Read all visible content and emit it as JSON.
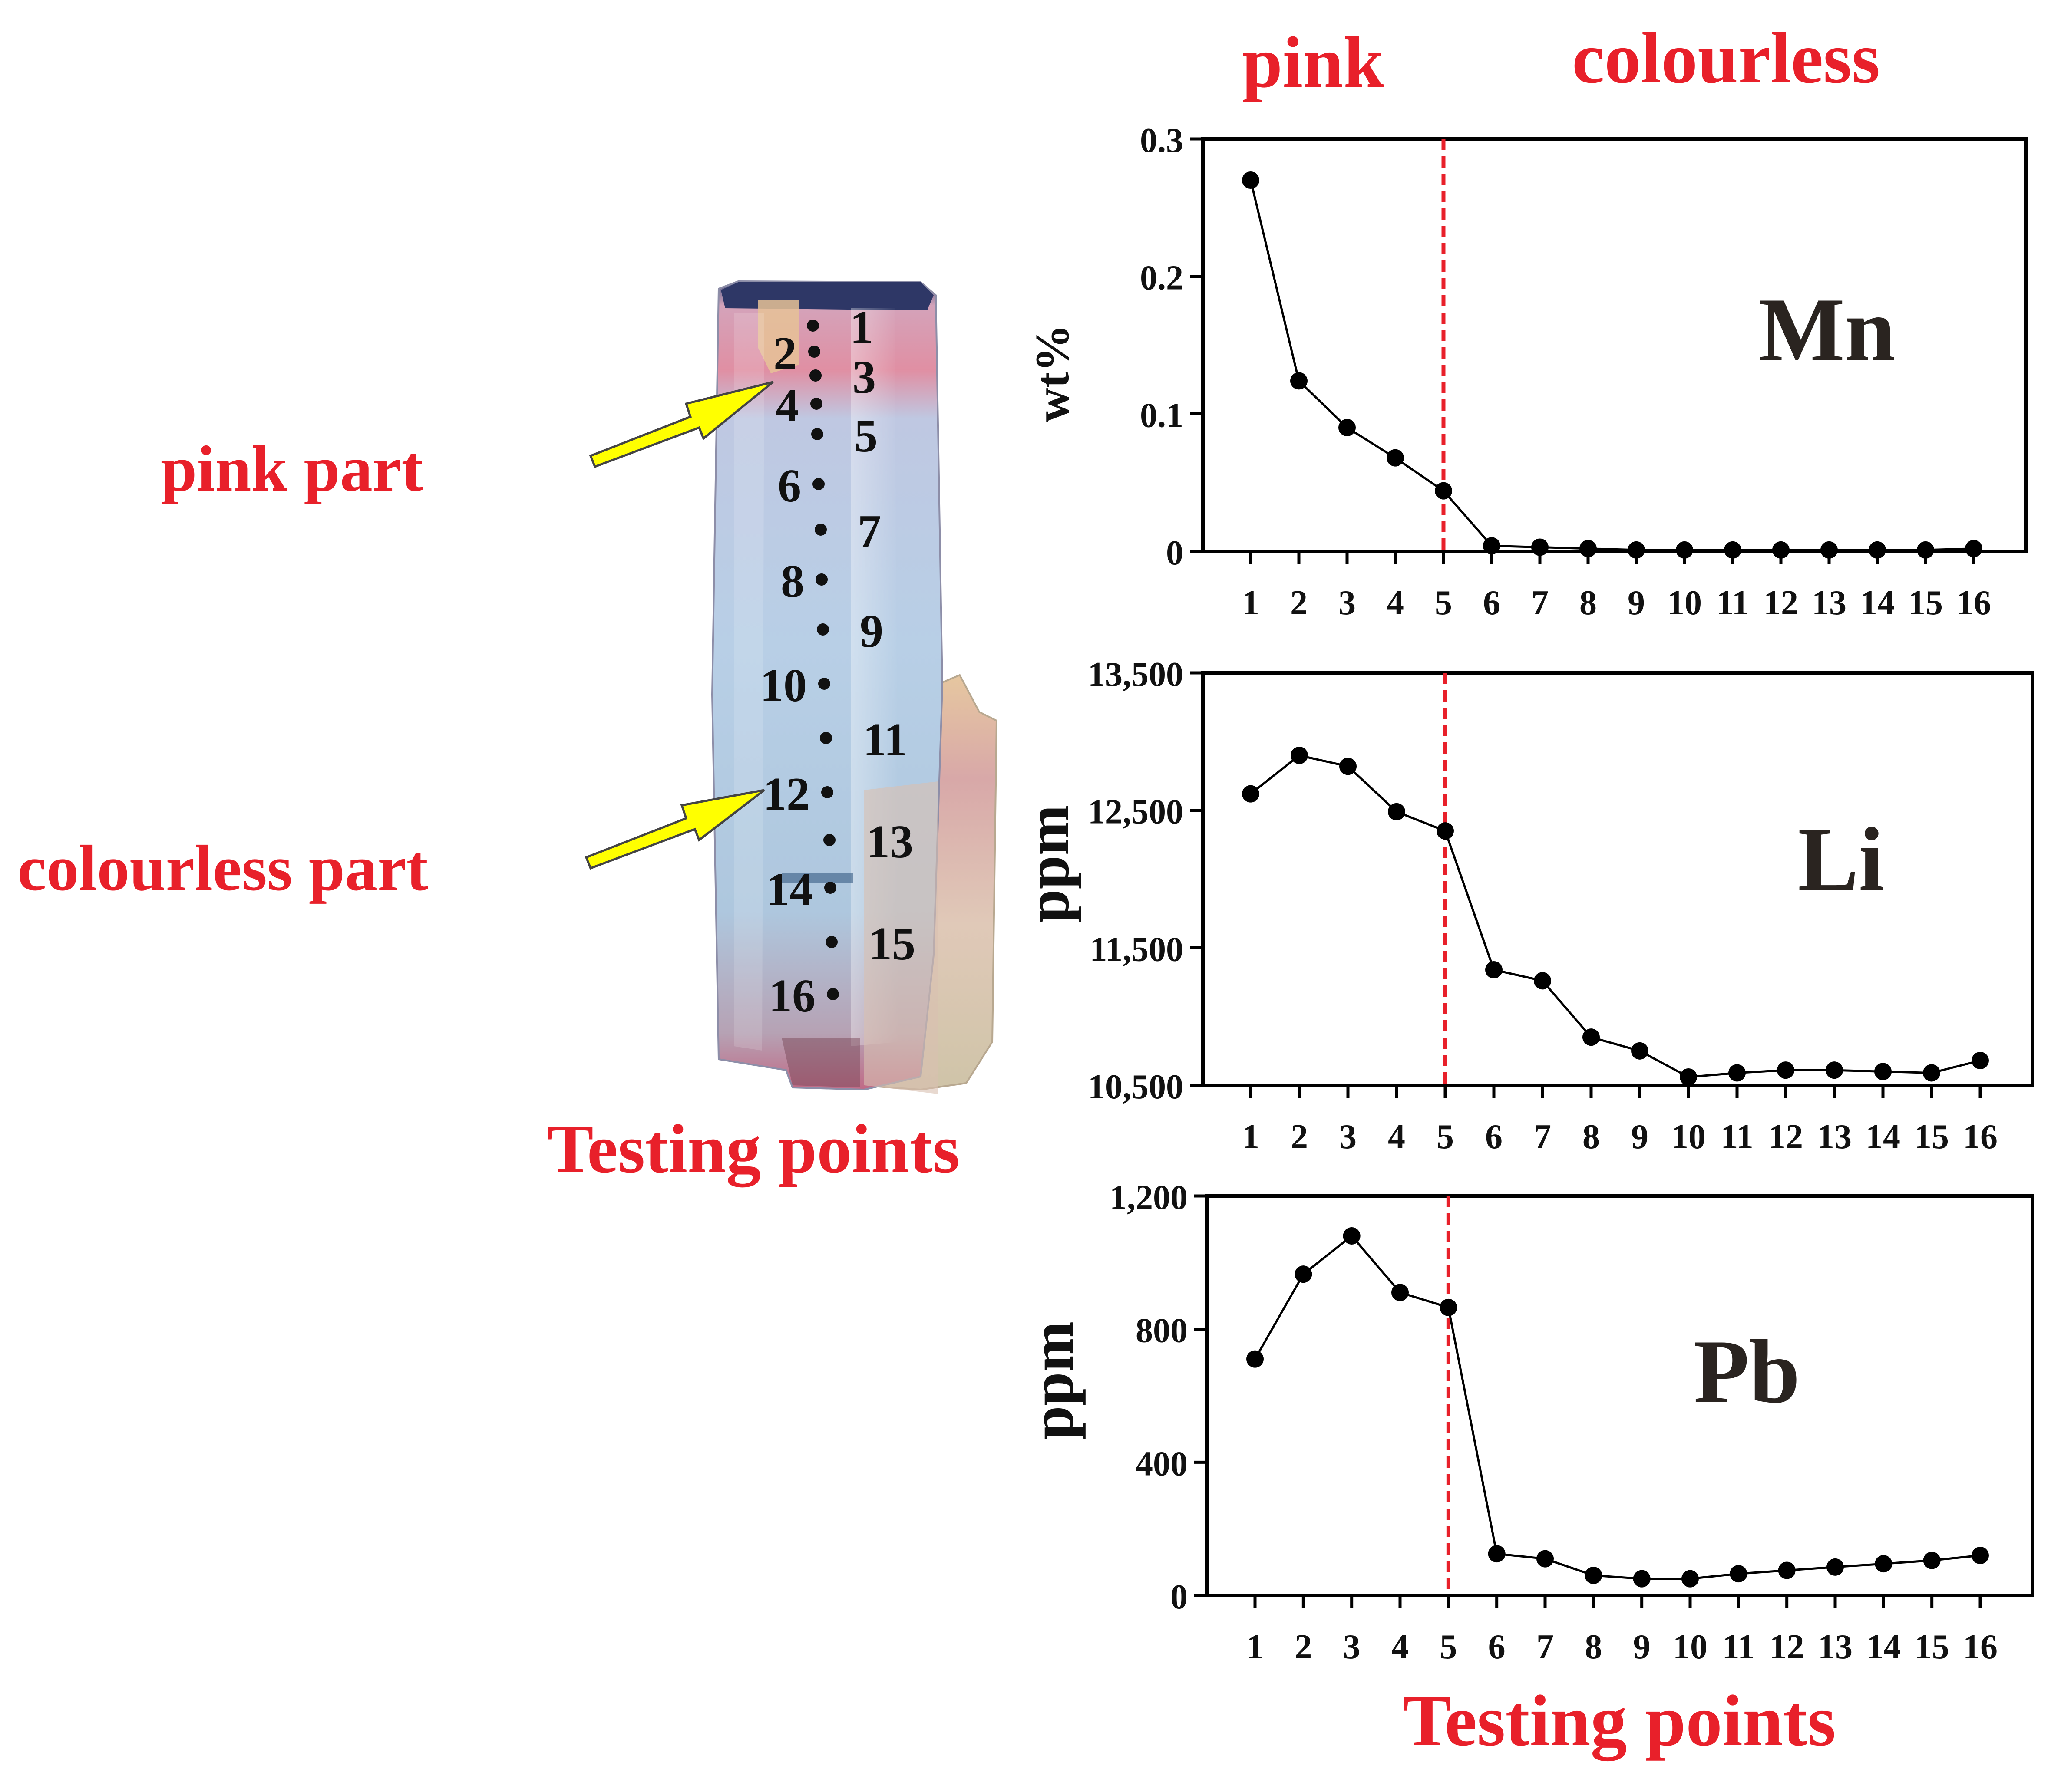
{
  "labels": {
    "pink_header": "pink",
    "colourless_header": "colourless",
    "pink_part": "pink part",
    "colourless_part": "colourless part",
    "photo_caption": "Testing points",
    "x_caption": "Testing points"
  },
  "photo_points": [
    "1",
    "2",
    "3",
    "4",
    "5",
    "6",
    "7",
    "8",
    "9",
    "10",
    "11",
    "12",
    "13",
    "14",
    "15",
    "16"
  ],
  "colors": {
    "accent_red": "#e8202a",
    "arrow_yellow": "#ffff00",
    "line": "#000000"
  },
  "chart_data": [
    {
      "type": "line",
      "element": "Mn",
      "ylabel": "wt%",
      "x": [
        1,
        2,
        3,
        4,
        5,
        6,
        7,
        8,
        9,
        10,
        11,
        12,
        13,
        14,
        15,
        16
      ],
      "values": [
        0.27,
        0.124,
        0.09,
        0.068,
        0.044,
        0.004,
        0.003,
        0.002,
        0.001,
        0.001,
        0.001,
        0.001,
        0.001,
        0.001,
        0.001,
        0.002
      ],
      "ylim": [
        0,
        0.3
      ],
      "yticks": [
        "0",
        "0.1",
        "0.2",
        "0.3"
      ],
      "divider_x": 5,
      "grid": false
    },
    {
      "type": "line",
      "element": "Li",
      "ylabel": "ppm",
      "x": [
        1,
        2,
        3,
        4,
        5,
        6,
        7,
        8,
        9,
        10,
        11,
        12,
        13,
        14,
        15,
        16
      ],
      "values": [
        12620,
        12900,
        12820,
        12490,
        12350,
        11340,
        11260,
        10850,
        10750,
        10560,
        10590,
        10610,
        10610,
        10600,
        10590,
        10680
      ],
      "ylim": [
        10500,
        13500
      ],
      "yticks": [
        "10,500",
        "11,500",
        "12,500",
        "13,500"
      ],
      "divider_x": 5,
      "grid": false
    },
    {
      "type": "line",
      "element": "Pb",
      "ylabel": "ppm",
      "x": [
        1,
        2,
        3,
        4,
        5,
        6,
        7,
        8,
        9,
        10,
        11,
        12,
        13,
        14,
        15,
        16
      ],
      "values": [
        710,
        965,
        1080,
        910,
        865,
        125,
        110,
        60,
        50,
        50,
        65,
        75,
        85,
        95,
        105,
        120
      ],
      "ylim": [
        0,
        1200
      ],
      "yticks": [
        "0",
        "400",
        "800",
        "1,200"
      ],
      "divider_x": 5,
      "grid": false
    }
  ]
}
